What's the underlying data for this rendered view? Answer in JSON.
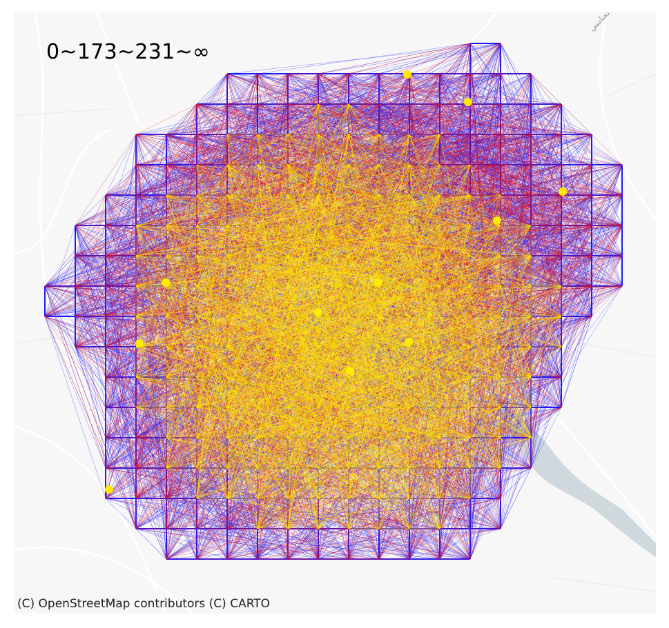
{
  "map": {
    "legend_label": "0~173~231~∞",
    "attribution": "(C) OpenStreetMap contributors (C) CARTO",
    "place_label": "ش. صلاح العناسي"
  },
  "colors": {
    "background": "#f7f7f7",
    "road": "#ffffff",
    "river": "#cfd8dc",
    "flow_low": "#1a1aff",
    "flow_mid": "#e8101a",
    "flow_high": "#ffea00"
  },
  "flow_classes": [
    {
      "range": "0~173",
      "color": "#1a1aff"
    },
    {
      "range": "173~231",
      "color": "#e8101a"
    },
    {
      "range": "231~∞",
      "color": "#ffea00"
    }
  ],
  "hub_icon": "yellow-node-cluster",
  "grid": {
    "note_icon": "grid-node-icon"
  }
}
